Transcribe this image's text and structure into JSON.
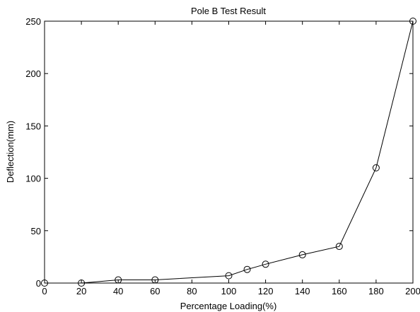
{
  "chart_data": {
    "type": "line",
    "title": "Pole B Test Result",
    "xlabel": "Percentage Loading(%)",
    "ylabel": "Deflection(mm)",
    "xlim": [
      0,
      200
    ],
    "ylim": [
      0,
      250
    ],
    "xticks": [
      0,
      20,
      40,
      60,
      80,
      100,
      120,
      140,
      160,
      180,
      200
    ],
    "yticks": [
      0,
      50,
      100,
      150,
      200,
      250
    ],
    "xtick_labels": [
      "0",
      "20",
      "40",
      "60",
      "80",
      "100",
      "120",
      "140",
      "160",
      "180",
      "200"
    ],
    "ytick_labels": [
      "0",
      "50",
      "100",
      "150",
      "200",
      "250"
    ],
    "grid": false,
    "legend": "none",
    "marker": "circle",
    "line_color": "#000000",
    "series": [
      {
        "x": [
          0,
          20,
          40,
          60,
          100,
          110,
          120,
          140,
          160,
          180,
          200
        ],
        "y": [
          0,
          0,
          3,
          3,
          7,
          13,
          18,
          27,
          35,
          110,
          250
        ]
      }
    ]
  }
}
